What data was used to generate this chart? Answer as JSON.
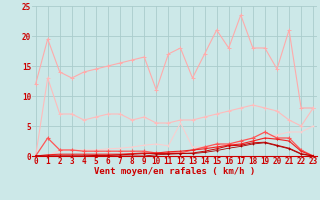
{
  "x": [
    0,
    1,
    2,
    3,
    4,
    5,
    6,
    7,
    8,
    9,
    10,
    11,
    12,
    13,
    14,
    15,
    16,
    17,
    18,
    19,
    20,
    21,
    22,
    23
  ],
  "series": [
    {
      "name": "line1_top",
      "color": "#ffaaaa",
      "lw": 0.8,
      "marker": "+",
      "ms": 3,
      "mew": 0.7,
      "y": [
        12,
        19.5,
        14,
        13,
        14,
        14.5,
        15,
        15.5,
        16,
        16.5,
        11,
        17,
        18,
        13,
        17,
        21,
        18,
        23.5,
        18,
        18,
        14.5,
        21,
        8,
        8
      ]
    },
    {
      "name": "line2_mid",
      "color": "#ffbbbb",
      "lw": 0.8,
      "marker": "+",
      "ms": 3,
      "mew": 0.7,
      "y": [
        0,
        13,
        7,
        7,
        6,
        6.5,
        7,
        7,
        6,
        6.5,
        5.5,
        5.5,
        6,
        6,
        6.5,
        7,
        7.5,
        8,
        8.5,
        8,
        7.5,
        6,
        5,
        8
      ]
    },
    {
      "name": "line3_low",
      "color": "#ffcccc",
      "lw": 0.7,
      "marker": "+",
      "ms": 2,
      "mew": 0.6,
      "y": [
        0,
        0,
        1,
        1,
        1,
        1,
        1.2,
        1.3,
        1.5,
        1.8,
        2,
        1.7,
        5.5,
        1.5,
        1.5,
        1.5,
        2,
        2,
        2.5,
        3,
        3.5,
        4,
        4,
        5
      ]
    },
    {
      "name": "line4_red1",
      "color": "#ff5555",
      "lw": 0.9,
      "marker": "+",
      "ms": 3,
      "mew": 0.8,
      "y": [
        0,
        3,
        1,
        1,
        0.8,
        0.8,
        0.8,
        0.8,
        0.8,
        0.8,
        0.5,
        0.5,
        0.5,
        1,
        1.5,
        2,
        2,
        2.5,
        3,
        4,
        3,
        3,
        1,
        0
      ]
    },
    {
      "name": "line5_red2",
      "color": "#ee2222",
      "lw": 0.8,
      "marker": "+",
      "ms": 2,
      "mew": 0.7,
      "y": [
        0,
        0.2,
        0.3,
        0.3,
        0.3,
        0.3,
        0.3,
        0.3,
        0.4,
        0.5,
        0.5,
        0.7,
        0.8,
        1,
        1.2,
        1.5,
        1.8,
        2,
        2.5,
        3,
        2.8,
        2.5,
        0.8,
        0
      ]
    },
    {
      "name": "line6_red3",
      "color": "#cc0000",
      "lw": 0.7,
      "marker": "+",
      "ms": 2,
      "mew": 0.6,
      "y": [
        0,
        0,
        0,
        0,
        0,
        0.1,
        0.1,
        0.2,
        0.3,
        0.4,
        0.4,
        0.4,
        0.4,
        0.5,
        0.8,
        1.2,
        1.7,
        1.8,
        2.2,
        2.3,
        1.8,
        1.3,
        0.4,
        0
      ]
    },
    {
      "name": "line7_red4",
      "color": "#aa0000",
      "lw": 0.6,
      "marker": "+",
      "ms": 2,
      "mew": 0.5,
      "y": [
        0,
        0,
        0,
        0,
        0,
        0,
        0,
        0,
        0,
        0,
        0.2,
        0.3,
        0.4,
        0.4,
        0.6,
        0.9,
        1.3,
        1.6,
        2.0,
        2.2,
        1.7,
        1.2,
        0.3,
        0
      ]
    }
  ],
  "xlim": [
    -0.3,
    23.3
  ],
  "ylim": [
    0,
    25
  ],
  "yticks": [
    0,
    5,
    10,
    15,
    20,
    25
  ],
  "xtick_labels": [
    "0",
    "1",
    "2",
    "3",
    "4",
    "5",
    "6",
    "7",
    "8",
    "9",
    "10",
    "11",
    "12",
    "13",
    "14",
    "15",
    "16",
    "17",
    "18",
    "19",
    "20",
    "21",
    "22",
    "23"
  ],
  "xlabel": "Vent moyen/en rafales ( km/h )",
  "bg_color": "#cce8e8",
  "grid_color": "#aacccc",
  "tick_color": "#cc0000",
  "label_color": "#cc0000",
  "xlabel_fontsize": 6.5,
  "tick_fontsize": 5.5
}
